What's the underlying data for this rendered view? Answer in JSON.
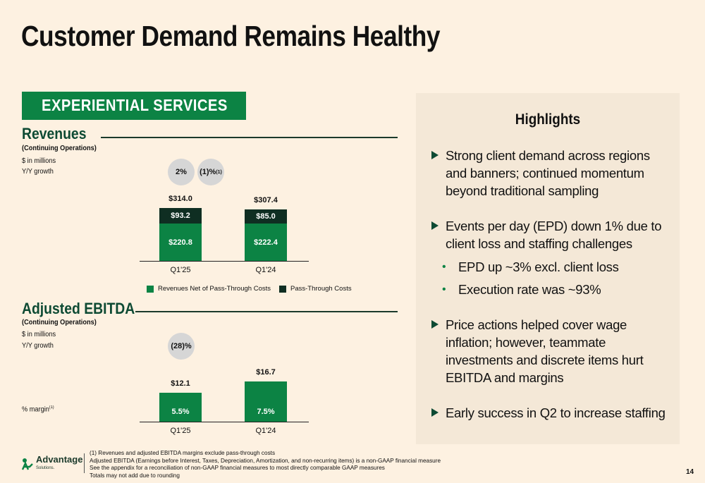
{
  "title": "Customer Demand Remains Healthy",
  "banner": "EXPERIENTIAL SERVICES",
  "revenues": {
    "title": "Revenues",
    "subtitle": "(Continuing Operations)",
    "units": "$ in millions",
    "growth_label": "Y/Y growth",
    "growth": [
      "2%",
      "(1)%"
    ],
    "growth_footnote": "(1)",
    "legend": [
      "Revenues Net of Pass-Through Costs",
      "Pass-Through Costs"
    ]
  },
  "ebitda": {
    "title": "Adjusted EBITDA",
    "subtitle": "(Continuing Operations)",
    "units": "$ in millions",
    "growth_label": "Y/Y growth",
    "growth": "(28)%",
    "margin_label": "% margin",
    "margin_footnote": "(1)"
  },
  "chart_data": [
    {
      "type": "bar",
      "title": "Revenues",
      "stacked": true,
      "categories": [
        "Q1'25",
        "Q1'24"
      ],
      "series": [
        {
          "name": "Revenues Net of Pass-Through Costs",
          "values": [
            220.8,
            222.4
          ],
          "labels": [
            "$220.8",
            "$222.4"
          ],
          "color": "#0c8344"
        },
        {
          "name": "Pass-Through Costs",
          "values": [
            93.2,
            85.0
          ],
          "labels": [
            "$93.2",
            "$85.0"
          ],
          "color": "#0f2e22"
        }
      ],
      "totals": [
        314.0,
        307.4
      ],
      "total_labels": [
        "$314.0",
        "$307.4"
      ]
    },
    {
      "type": "bar",
      "title": "Adjusted EBITDA",
      "categories": [
        "Q1'25",
        "Q1'24"
      ],
      "values": [
        12.1,
        16.7
      ],
      "value_labels": [
        "$12.1",
        "$16.7"
      ],
      "margins": [
        "5.5%",
        "7.5%"
      ],
      "color": "#0c8344"
    }
  ],
  "highlights": {
    "title": "Highlights",
    "items": [
      {
        "text": "Strong client demand across regions and banners; continued momentum beyond traditional sampling",
        "sub": []
      },
      {
        "text": "Events per day (EPD) down 1% due to client loss and staffing challenges",
        "sub": [
          "EPD up ~3% excl. client loss",
          "Execution rate was ~93%"
        ]
      },
      {
        "text": "Price actions helped cover wage inflation; however, teammate investments and discrete items hurt EBITDA and margins",
        "sub": []
      },
      {
        "text": "Early success in Q2 to increase staffing",
        "sub": []
      }
    ]
  },
  "footnotes": [
    "(1)   Revenues and adjusted EBITDA margins exclude pass-through costs",
    "Adjusted EBITDA (Earnings before Interest, Taxes, Depreciation, Amortization, and non-recurring items) is a non-GAAP financial measure",
    "See the appendix for a reconciliation of non-GAAP financial measures to most directly comparable GAAP measures",
    "Totals may not add due to rounding"
  ],
  "logo": {
    "name": "Advantage",
    "sub": "Solutions."
  },
  "page_number": "14",
  "colors": {
    "background": "#fdf1e1",
    "panel": "#f4e8d7",
    "green": "#0c8344",
    "dark_green": "#0f2e22",
    "title_green": "#0d4a33"
  }
}
